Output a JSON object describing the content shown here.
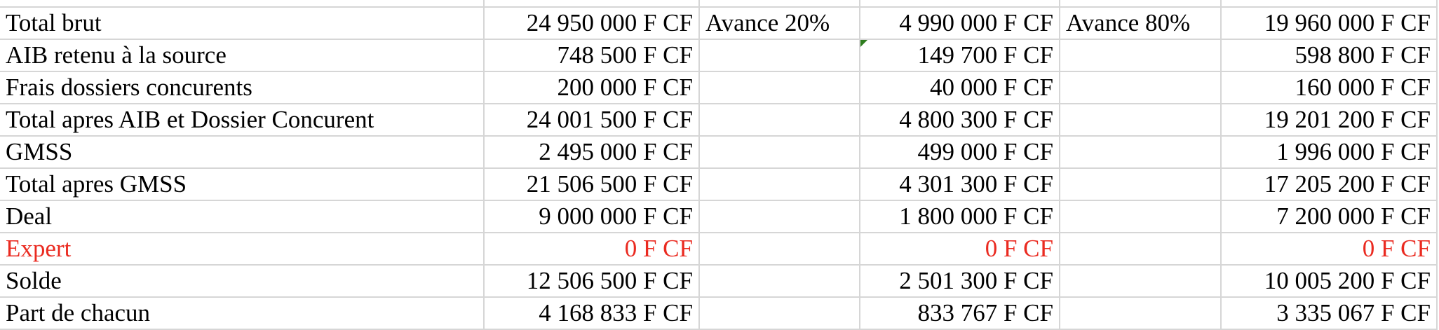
{
  "sheet": {
    "rows": [
      {
        "label": "Total brut",
        "total": "24 950 000 F CF",
        "label_20": "Avance 20%",
        "avance_20": "4 990 000 F CF",
        "label_80": "Avance 80%",
        "avance_80": "19 960 000 F CF"
      },
      {
        "label": "AIB retenu à la source",
        "total": "748 500 F CF",
        "label_20": "",
        "avance_20": "149 700 F CF",
        "label_80": "",
        "avance_80": "598 800 F CF"
      },
      {
        "label": "Frais dossiers concurents",
        "total": "200 000 F CF",
        "label_20": "",
        "avance_20": "40 000 F CF",
        "label_80": "",
        "avance_80": "160 000 F CF"
      },
      {
        "label": "Total apres AIB et Dossier Concurent",
        "total": "24 001 500 F CF",
        "label_20": "",
        "avance_20": "4 800 300 F CF",
        "label_80": "",
        "avance_80": "19 201 200 F CF"
      },
      {
        "label": "GMSS",
        "total": "2 495 000 F CF",
        "label_20": "",
        "avance_20": "499 000 F CF",
        "label_80": "",
        "avance_80": "1 996 000 F CF"
      },
      {
        "label": "Total apres GMSS",
        "total": "21 506 500 F CF",
        "label_20": "",
        "avance_20": "4 301 300 F CF",
        "label_80": "",
        "avance_80": "17 205 200 F CF"
      },
      {
        "label": "Deal",
        "total": "9 000 000 F CF",
        "label_20": "",
        "avance_20": "1 800 000 F CF",
        "label_80": "",
        "avance_80": "7 200 000 F CF"
      },
      {
        "label": "Expert",
        "total": "0 F CF",
        "label_20": "",
        "avance_20": "0 F CF",
        "label_80": "",
        "avance_80": "0 F CF"
      },
      {
        "label": "Solde",
        "total": "12 506 500 F CF",
        "label_20": "",
        "avance_20": "2 501 300 F CF",
        "label_80": "",
        "avance_80": "10 005 200 F CF"
      },
      {
        "label": "Part de chacun",
        "total": "4 168 833 F CF",
        "label_20": "",
        "avance_20": "833 767 F CF",
        "label_80": "",
        "avance_80": "3 335 067 F CF"
      }
    ],
    "highlight_row_color": "#ea2a20",
    "comment_indicator_color": "#2e7d1e"
  }
}
